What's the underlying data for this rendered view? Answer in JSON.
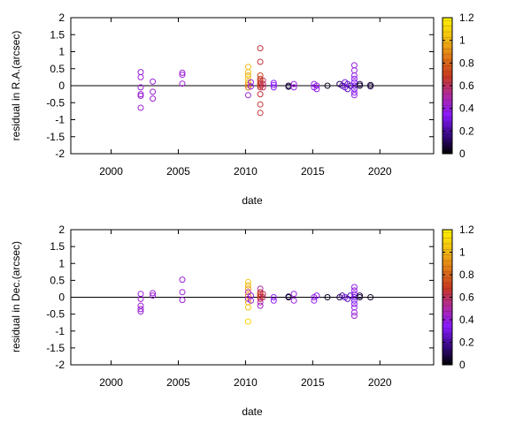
{
  "chart_data": [
    {
      "type": "scatter",
      "xlabel": "date",
      "ylabel": "residual in R.A.(arcsec)",
      "xlim": [
        1997,
        2024
      ],
      "ylim": [
        -2,
        2
      ],
      "xticks": [
        "2000",
        "2005",
        "2010",
        "2015",
        "2020"
      ],
      "yticks": [
        "2",
        "1.5",
        "1",
        "0.5",
        "0",
        "-0.5",
        "-1",
        "-1.5",
        "-2"
      ],
      "zero_line": true,
      "marker": "open-circle",
      "colorbar": {
        "range": [
          0,
          1.2
        ],
        "ticks": [
          "1.2",
          "1",
          "0.8",
          "0.6",
          "0.4",
          "0.2",
          "0"
        ],
        "colors": [
          "#000000",
          "#3a0a8a",
          "#8a1aff",
          "#b02aa0",
          "#c83a20",
          "#e07818",
          "#f2c010",
          "#fff000"
        ]
      },
      "points": [
        {
          "x": 2002.2,
          "y": 0.4,
          "c": 0.42
        },
        {
          "x": 2002.2,
          "y": 0.25,
          "c": 0.42
        },
        {
          "x": 2002.2,
          "y": -0.05,
          "c": 0.42
        },
        {
          "x": 2002.2,
          "y": -0.25,
          "c": 0.42
        },
        {
          "x": 2002.2,
          "y": -0.3,
          "c": 0.42
        },
        {
          "x": 2002.2,
          "y": -0.65,
          "c": 0.42
        },
        {
          "x": 2003.1,
          "y": 0.12,
          "c": 0.42
        },
        {
          "x": 2003.1,
          "y": -0.18,
          "c": 0.42
        },
        {
          "x": 2003.1,
          "y": -0.38,
          "c": 0.42
        },
        {
          "x": 2005.3,
          "y": 0.38,
          "c": 0.42
        },
        {
          "x": 2005.3,
          "y": 0.32,
          "c": 0.42
        },
        {
          "x": 2005.3,
          "y": 0.06,
          "c": 0.42
        },
        {
          "x": 2010.2,
          "y": 0.55,
          "c": 1.0
        },
        {
          "x": 2010.2,
          "y": 0.4,
          "c": 1.05
        },
        {
          "x": 2010.2,
          "y": 0.3,
          "c": 0.95
        },
        {
          "x": 2010.2,
          "y": 0.2,
          "c": 1.1
        },
        {
          "x": 2010.2,
          "y": 0.1,
          "c": 1.0
        },
        {
          "x": 2010.2,
          "y": 0.02,
          "c": 0.9
        },
        {
          "x": 2010.2,
          "y": -0.05,
          "c": 0.85
        },
        {
          "x": 2010.2,
          "y": -0.28,
          "c": 0.42
        },
        {
          "x": 2010.4,
          "y": 0.1,
          "c": 0.4
        },
        {
          "x": 2010.4,
          "y": -0.02,
          "c": 0.4
        },
        {
          "x": 2011.1,
          "y": 1.1,
          "c": 0.65
        },
        {
          "x": 2011.1,
          "y": 0.7,
          "c": 0.65
        },
        {
          "x": 2011.1,
          "y": 0.3,
          "c": 0.7
        },
        {
          "x": 2011.1,
          "y": 0.2,
          "c": 0.7
        },
        {
          "x": 2011.1,
          "y": 0.15,
          "c": 0.72
        },
        {
          "x": 2011.1,
          "y": 0.1,
          "c": 0.7
        },
        {
          "x": 2011.1,
          "y": 0.05,
          "c": 0.68
        },
        {
          "x": 2011.1,
          "y": 0.0,
          "c": 0.7
        },
        {
          "x": 2011.1,
          "y": -0.05,
          "c": 0.65
        },
        {
          "x": 2011.1,
          "y": -0.25,
          "c": 0.65
        },
        {
          "x": 2011.1,
          "y": -0.55,
          "c": 0.65
        },
        {
          "x": 2011.1,
          "y": -0.8,
          "c": 0.65
        },
        {
          "x": 2011.3,
          "y": 0.15,
          "c": 0.6
        },
        {
          "x": 2011.3,
          "y": 0.05,
          "c": 0.6
        },
        {
          "x": 2011.3,
          "y": -0.05,
          "c": 0.6
        },
        {
          "x": 2012.1,
          "y": 0.08,
          "c": 0.35
        },
        {
          "x": 2012.1,
          "y": 0.02,
          "c": 0.35
        },
        {
          "x": 2012.1,
          "y": -0.05,
          "c": 0.35
        },
        {
          "x": 2013.2,
          "y": 0.0,
          "c": 0.05
        },
        {
          "x": 2013.2,
          "y": -0.03,
          "c": 0.1
        },
        {
          "x": 2013.6,
          "y": 0.05,
          "c": 0.4
        },
        {
          "x": 2013.6,
          "y": -0.05,
          "c": 0.4
        },
        {
          "x": 2015.1,
          "y": 0.05,
          "c": 0.38
        },
        {
          "x": 2015.1,
          "y": -0.05,
          "c": 0.38
        },
        {
          "x": 2015.3,
          "y": 0.0,
          "c": 0.38
        },
        {
          "x": 2015.3,
          "y": -0.1,
          "c": 0.38
        },
        {
          "x": 2016.1,
          "y": 0.0,
          "c": 0.05
        },
        {
          "x": 2017.0,
          "y": 0.05,
          "c": 0.1
        },
        {
          "x": 2017.2,
          "y": 0.0,
          "c": 0.2
        },
        {
          "x": 2017.4,
          "y": 0.1,
          "c": 0.3
        },
        {
          "x": 2017.4,
          "y": -0.05,
          "c": 0.3
        },
        {
          "x": 2017.6,
          "y": 0.05,
          "c": 0.25
        },
        {
          "x": 2017.6,
          "y": -0.1,
          "c": 0.25
        },
        {
          "x": 2017.8,
          "y": 0.0,
          "c": 0.2
        },
        {
          "x": 2018.1,
          "y": 0.6,
          "c": 0.4
        },
        {
          "x": 2018.1,
          "y": 0.45,
          "c": 0.4
        },
        {
          "x": 2018.1,
          "y": 0.3,
          "c": 0.4
        },
        {
          "x": 2018.1,
          "y": 0.2,
          "c": 0.35
        },
        {
          "x": 2018.1,
          "y": 0.1,
          "c": 0.35
        },
        {
          "x": 2018.1,
          "y": 0.0,
          "c": 0.3
        },
        {
          "x": 2018.1,
          "y": -0.1,
          "c": 0.3
        },
        {
          "x": 2018.1,
          "y": -0.2,
          "c": 0.35
        },
        {
          "x": 2018.1,
          "y": -0.28,
          "c": 0.4
        },
        {
          "x": 2018.5,
          "y": 0.05,
          "c": 0.1
        },
        {
          "x": 2018.5,
          "y": 0.0,
          "c": 0.05
        },
        {
          "x": 2019.3,
          "y": 0.02,
          "c": 0.05
        },
        {
          "x": 2019.3,
          "y": -0.02,
          "c": 0.1
        }
      ]
    },
    {
      "type": "scatter",
      "xlabel": "date",
      "ylabel": "residual in Dec.(arcsec)",
      "xlim": [
        1997,
        2024
      ],
      "ylim": [
        -2,
        2
      ],
      "xticks": [
        "2000",
        "2005",
        "2010",
        "2015",
        "2020"
      ],
      "yticks": [
        "2",
        "1.5",
        "1",
        "0.5",
        "0",
        "-0.5",
        "-1",
        "-1.5",
        "-2"
      ],
      "zero_line": true,
      "marker": "open-circle",
      "colorbar": {
        "range": [
          0,
          1.2
        ],
        "ticks": [
          "1.2",
          "1",
          "0.8",
          "0.6",
          "0.4",
          "0.2",
          "0"
        ],
        "colors": [
          "#000000",
          "#3a0a8a",
          "#8a1aff",
          "#b02aa0",
          "#c83a20",
          "#e07818",
          "#f2c010",
          "#fff000"
        ]
      },
      "points": [
        {
          "x": 2002.2,
          "y": 0.1,
          "c": 0.42
        },
        {
          "x": 2002.2,
          "y": -0.05,
          "c": 0.42
        },
        {
          "x": 2002.2,
          "y": -0.25,
          "c": 0.42
        },
        {
          "x": 2002.2,
          "y": -0.35,
          "c": 0.42
        },
        {
          "x": 2002.2,
          "y": -0.42,
          "c": 0.42
        },
        {
          "x": 2003.1,
          "y": 0.12,
          "c": 0.42
        },
        {
          "x": 2003.1,
          "y": 0.05,
          "c": 0.42
        },
        {
          "x": 2005.3,
          "y": 0.52,
          "c": 0.42
        },
        {
          "x": 2005.3,
          "y": 0.15,
          "c": 0.42
        },
        {
          "x": 2005.3,
          "y": -0.08,
          "c": 0.42
        },
        {
          "x": 2010.2,
          "y": 0.45,
          "c": 1.05
        },
        {
          "x": 2010.2,
          "y": 0.35,
          "c": 1.0
        },
        {
          "x": 2010.2,
          "y": 0.25,
          "c": 0.95
        },
        {
          "x": 2010.2,
          "y": 0.15,
          "c": 0.5
        },
        {
          "x": 2010.2,
          "y": 0.05,
          "c": 0.9
        },
        {
          "x": 2010.2,
          "y": -0.05,
          "c": 0.45
        },
        {
          "x": 2010.2,
          "y": -0.15,
          "c": 1.0
        },
        {
          "x": 2010.2,
          "y": -0.3,
          "c": 1.05
        },
        {
          "x": 2010.2,
          "y": -0.72,
          "c": 1.1
        },
        {
          "x": 2010.4,
          "y": 0.05,
          "c": 0.4
        },
        {
          "x": 2010.4,
          "y": -0.1,
          "c": 0.4
        },
        {
          "x": 2011.1,
          "y": 0.25,
          "c": 0.5
        },
        {
          "x": 2011.1,
          "y": 0.15,
          "c": 0.65
        },
        {
          "x": 2011.1,
          "y": 0.1,
          "c": 0.7
        },
        {
          "x": 2011.1,
          "y": 0.05,
          "c": 0.7
        },
        {
          "x": 2011.1,
          "y": 0.0,
          "c": 0.68
        },
        {
          "x": 2011.1,
          "y": -0.05,
          "c": 0.65
        },
        {
          "x": 2011.1,
          "y": -0.15,
          "c": 0.5
        },
        {
          "x": 2011.1,
          "y": -0.25,
          "c": 0.45
        },
        {
          "x": 2011.3,
          "y": 0.1,
          "c": 0.6
        },
        {
          "x": 2011.3,
          "y": 0.0,
          "c": 0.6
        },
        {
          "x": 2012.1,
          "y": 0.0,
          "c": 0.35
        },
        {
          "x": 2012.1,
          "y": -0.1,
          "c": 0.35
        },
        {
          "x": 2013.2,
          "y": 0.0,
          "c": 0.05
        },
        {
          "x": 2013.2,
          "y": 0.02,
          "c": 0.1
        },
        {
          "x": 2013.6,
          "y": 0.1,
          "c": 0.4
        },
        {
          "x": 2013.6,
          "y": -0.1,
          "c": 0.4
        },
        {
          "x": 2015.1,
          "y": 0.0,
          "c": 0.38
        },
        {
          "x": 2015.1,
          "y": -0.1,
          "c": 0.38
        },
        {
          "x": 2015.3,
          "y": 0.05,
          "c": 0.38
        },
        {
          "x": 2016.1,
          "y": 0.0,
          "c": 0.05
        },
        {
          "x": 2017.0,
          "y": 0.0,
          "c": 0.1
        },
        {
          "x": 2017.2,
          "y": 0.05,
          "c": 0.2
        },
        {
          "x": 2017.4,
          "y": 0.0,
          "c": 0.3
        },
        {
          "x": 2017.6,
          "y": -0.05,
          "c": 0.25
        },
        {
          "x": 2017.8,
          "y": 0.05,
          "c": 0.2
        },
        {
          "x": 2018.1,
          "y": 0.3,
          "c": 0.4
        },
        {
          "x": 2018.1,
          "y": 0.2,
          "c": 0.4
        },
        {
          "x": 2018.1,
          "y": 0.1,
          "c": 0.35
        },
        {
          "x": 2018.1,
          "y": 0.0,
          "c": 0.3
        },
        {
          "x": 2018.1,
          "y": -0.1,
          "c": 0.3
        },
        {
          "x": 2018.1,
          "y": -0.2,
          "c": 0.35
        },
        {
          "x": 2018.1,
          "y": -0.3,
          "c": 0.4
        },
        {
          "x": 2018.1,
          "y": -0.45,
          "c": 0.4
        },
        {
          "x": 2018.1,
          "y": -0.55,
          "c": 0.42
        },
        {
          "x": 2018.5,
          "y": 0.0,
          "c": 0.05
        },
        {
          "x": 2018.5,
          "y": 0.05,
          "c": 0.1
        },
        {
          "x": 2019.3,
          "y": 0.0,
          "c": 0.05
        }
      ]
    }
  ]
}
